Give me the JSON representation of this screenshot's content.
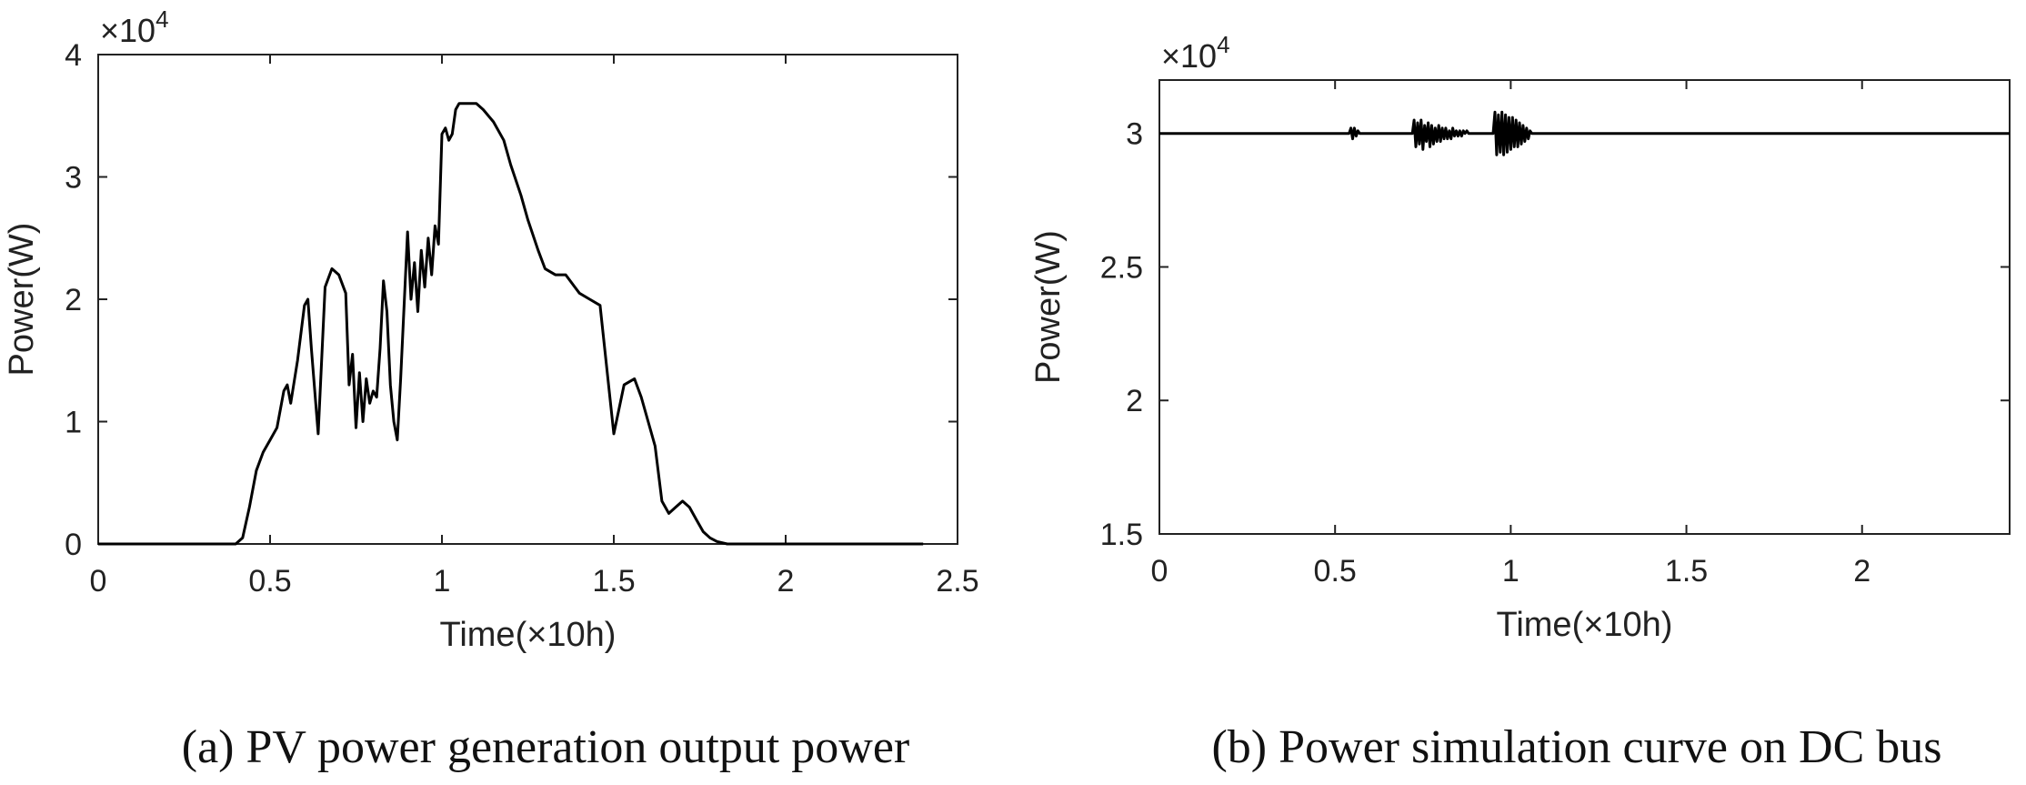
{
  "chart_data": [
    {
      "type": "line",
      "caption": "(a) PV power generation output power",
      "xlabel": "Time(×10h)",
      "ylabel": "Power(W)",
      "y_multiplier": "×10",
      "y_multiplier_exp": "4",
      "xlim": [
        0,
        2.5
      ],
      "ylim": [
        0,
        4
      ],
      "xticks": [
        "0",
        "0.5",
        "1",
        "1.5",
        "2",
        "2.5"
      ],
      "yticks": [
        "0",
        "1",
        "2",
        "3",
        "4"
      ],
      "line_color": "#000000",
      "series": [
        {
          "x": [
            0,
            0.4,
            0.42,
            0.44,
            0.46,
            0.48,
            0.5,
            0.52,
            0.54,
            0.55,
            0.56,
            0.58,
            0.6,
            0.61,
            0.62,
            0.64,
            0.66,
            0.68,
            0.7,
            0.72,
            0.73,
            0.74,
            0.75,
            0.76,
            0.77,
            0.78,
            0.79,
            0.8,
            0.81,
            0.82,
            0.83,
            0.84,
            0.85,
            0.86,
            0.87,
            0.88,
            0.9,
            0.91,
            0.92,
            0.93,
            0.94,
            0.95,
            0.96,
            0.97,
            0.98,
            0.99,
            1.0,
            1.01,
            1.02,
            1.03,
            1.04,
            1.05,
            1.06,
            1.08,
            1.1,
            1.12,
            1.15,
            1.18,
            1.2,
            1.23,
            1.25,
            1.28,
            1.3,
            1.33,
            1.36,
            1.4,
            1.43,
            1.46,
            1.5,
            1.53,
            1.56,
            1.58,
            1.6,
            1.62,
            1.64,
            1.66,
            1.68,
            1.7,
            1.72,
            1.74,
            1.76,
            1.78,
            1.8,
            1.83,
            1.86,
            1.9,
            1.95,
            2.0,
            2.4
          ],
          "y": [
            0,
            0,
            0.05,
            0.3,
            0.6,
            0.75,
            0.85,
            0.95,
            1.25,
            1.3,
            1.15,
            1.5,
            1.95,
            2.0,
            1.6,
            0.9,
            2.1,
            2.25,
            2.2,
            2.05,
            1.3,
            1.55,
            0.95,
            1.4,
            1.0,
            1.35,
            1.15,
            1.25,
            1.2,
            1.6,
            2.15,
            1.9,
            1.3,
            1.0,
            0.85,
            1.35,
            2.55,
            2.0,
            2.3,
            1.9,
            2.4,
            2.1,
            2.5,
            2.2,
            2.6,
            2.45,
            3.35,
            3.4,
            3.3,
            3.35,
            3.55,
            3.6,
            3.6,
            3.6,
            3.6,
            3.55,
            3.45,
            3.3,
            3.1,
            2.85,
            2.65,
            2.4,
            2.25,
            2.2,
            2.2,
            2.05,
            2.0,
            1.95,
            0.9,
            1.3,
            1.35,
            1.2,
            1.0,
            0.8,
            0.35,
            0.25,
            0.3,
            0.35,
            0.3,
            0.2,
            0.1,
            0.05,
            0.02,
            0,
            0,
            0,
            0,
            0,
            0
          ]
        }
      ]
    },
    {
      "type": "line",
      "caption": "(b) Power simulation curve on DC bus",
      "xlabel": "Time(×10h)",
      "ylabel": "Power(W)",
      "y_multiplier": "×10",
      "y_multiplier_exp": "4",
      "xlim": [
        0,
        2.42
      ],
      "ylim": [
        1.5,
        3.2
      ],
      "xticks": [
        "0",
        "0.5",
        "1",
        "1.5",
        "2"
      ],
      "yticks": [
        "1.5",
        "2",
        "2.5",
        "3"
      ],
      "line_color": "#000000",
      "series": [
        {
          "x": [
            0,
            0.54,
            0.545,
            0.55,
            0.555,
            0.56,
            0.565,
            0.57,
            0.72,
            0.725,
            0.73,
            0.735,
            0.74,
            0.745,
            0.75,
            0.755,
            0.76,
            0.765,
            0.77,
            0.775,
            0.78,
            0.785,
            0.79,
            0.795,
            0.8,
            0.805,
            0.81,
            0.815,
            0.82,
            0.825,
            0.83,
            0.835,
            0.84,
            0.845,
            0.85,
            0.855,
            0.86,
            0.865,
            0.87,
            0.875,
            0.88,
            0.95,
            0.955,
            0.96,
            0.965,
            0.97,
            0.975,
            0.98,
            0.985,
            0.99,
            0.995,
            1.0,
            1.005,
            1.01,
            1.015,
            1.02,
            1.025,
            1.03,
            1.035,
            1.04,
            1.045,
            1.05,
            1.055,
            1.06,
            1.08,
            2.42
          ],
          "y": [
            3.0,
            3.0,
            3.02,
            2.98,
            3.02,
            2.99,
            3.01,
            3.0,
            3.0,
            3.05,
            2.95,
            3.04,
            2.96,
            3.05,
            2.94,
            3.03,
            2.97,
            3.04,
            2.95,
            3.03,
            2.96,
            3.02,
            2.97,
            3.03,
            2.97,
            3.02,
            2.98,
            3.02,
            2.98,
            3.01,
            2.98,
            3.02,
            2.99,
            3.01,
            2.99,
            3.01,
            2.99,
            3.01,
            3.0,
            3.01,
            3.0,
            3.0,
            3.08,
            2.92,
            3.07,
            2.93,
            3.08,
            2.92,
            3.07,
            2.93,
            3.06,
            2.94,
            3.06,
            2.95,
            3.05,
            2.95,
            3.04,
            2.96,
            3.03,
            2.97,
            3.02,
            2.98,
            3.01,
            3.0,
            3.0,
            3.0
          ]
        }
      ]
    }
  ]
}
